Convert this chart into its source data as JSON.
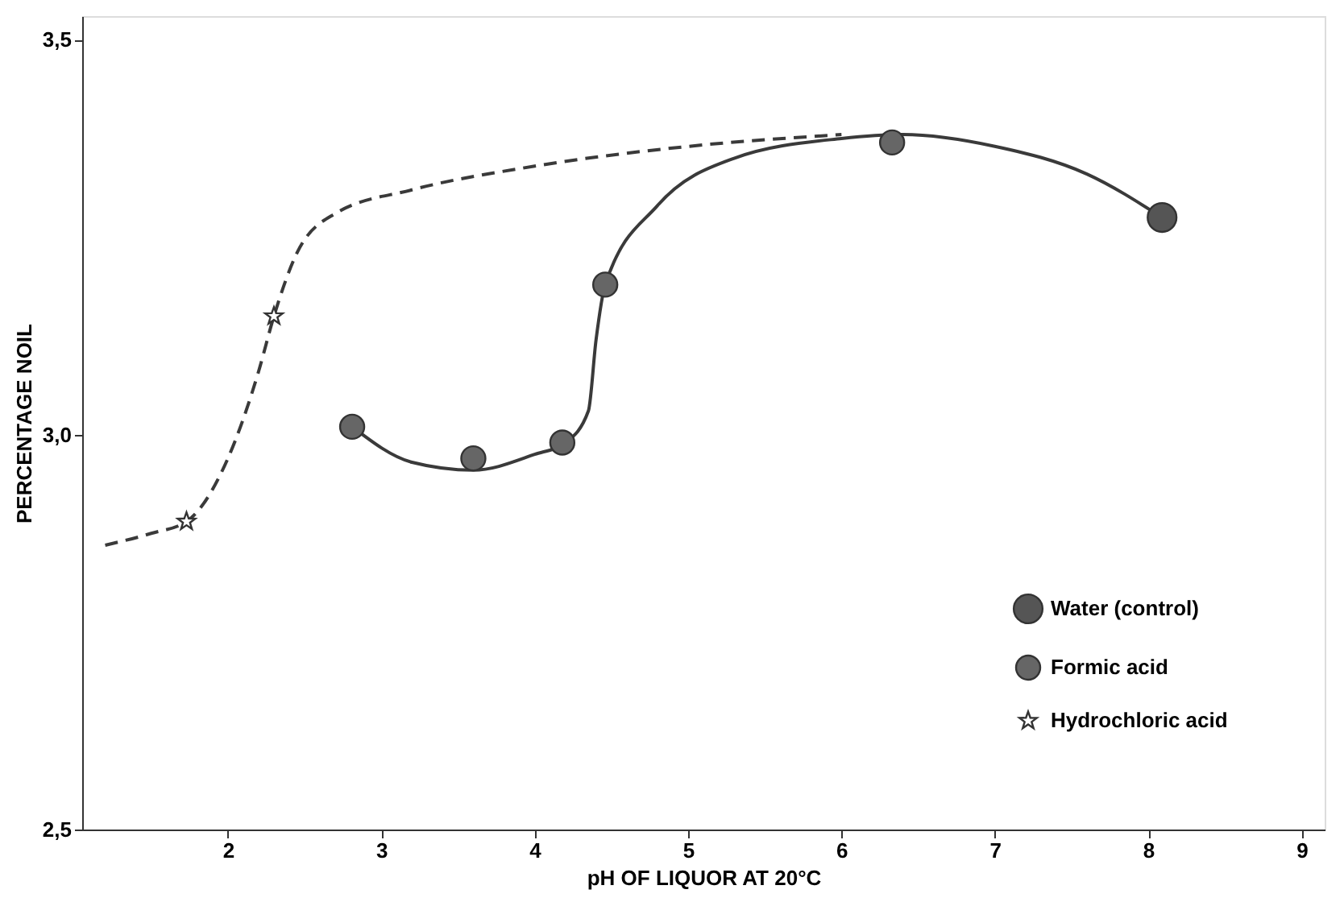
{
  "chart_data": {
    "type": "line",
    "xlabel": "pH OF LIQUOR AT 20°C",
    "ylabel": "PERCENTAGE NOIL",
    "xlim": [
      1.05,
      9.15
    ],
    "xticks": [
      2,
      3,
      4,
      5,
      6,
      7,
      8,
      9
    ],
    "ylim": [
      2.5,
      3.53
    ],
    "yticks": [
      {
        "value": 2.5,
        "label": "2,5"
      },
      {
        "value": 3.0,
        "label": "3,0"
      },
      {
        "value": 3.5,
        "label": "3,5"
      }
    ],
    "grid": false,
    "legend": "bottom right",
    "series": [
      {
        "type": "line",
        "line_style": "dashed",
        "marker": "none",
        "color": "#3a3a3a",
        "x": [
          1.2,
          1.5,
          1.73,
          2.0,
          2.2,
          2.3,
          2.45,
          2.7,
          3.2,
          4.0,
          5.0,
          6.0
        ],
        "values": [
          2.86,
          2.875,
          2.89,
          2.97,
          3.08,
          3.15,
          3.23,
          3.28,
          3.31,
          3.34,
          3.365,
          3.38
        ]
      },
      {
        "type": "line",
        "line_style": "solid",
        "marker": "none",
        "color": "#3a3a3a",
        "x": [
          2.81,
          3.2,
          3.6,
          4.0,
          4.2,
          4.35,
          4.4,
          4.46,
          4.8,
          5.3,
          6.0,
          6.4,
          7.0,
          7.6,
          8.09
        ],
        "values": [
          3.01,
          2.965,
          2.955,
          2.975,
          2.99,
          3.03,
          3.12,
          3.19,
          3.29,
          3.35,
          3.375,
          3.38,
          3.365,
          3.33,
          3.275
        ]
      },
      {
        "type": "scatter",
        "name": "Water (control)",
        "marker": "circle",
        "color": "#555555",
        "x": [
          8.09
        ],
        "values": [
          3.275
        ]
      },
      {
        "type": "scatter",
        "name": "Formic acid",
        "marker": "circle",
        "color": "#666666",
        "x": [
          2.81,
          3.6,
          4.18,
          4.46,
          6.33
        ],
        "values": [
          3.01,
          2.97,
          2.99,
          3.19,
          3.37
        ]
      },
      {
        "type": "scatter",
        "name": "Hydrochloric acid",
        "marker": "star",
        "color": "#ffffff",
        "x": [
          1.73,
          2.3
        ],
        "values": [
          2.89,
          3.15
        ]
      }
    ]
  }
}
